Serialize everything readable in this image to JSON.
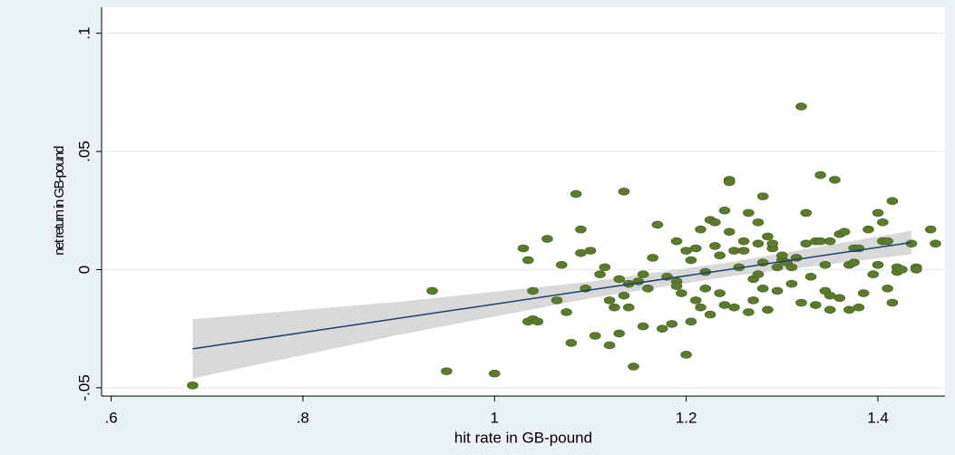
{
  "chart_data": {
    "type": "scatter",
    "y_label": "net return in GB-pound",
    "x_label": "hit rate in GB-pound",
    "xlim": [
      0.59,
      1.47
    ],
    "ylim": [
      -0.0535,
      0.111
    ],
    "xticks": [
      {
        "value": 0.6,
        "label": ".6"
      },
      {
        "value": 0.8,
        "label": ".8"
      },
      1,
      {
        "value": 1.2,
        "label": "1.2"
      },
      {
        "value": 1.4,
        "label": "1.4"
      }
    ],
    "yticks": [
      {
        "value": -0.05,
        "label": "-.05"
      },
      0,
      {
        "value": 0.05,
        "label": ".05"
      },
      {
        "value": 0.1,
        "label": ".1"
      }
    ],
    "grid": true,
    "color": "#5b7a2c",
    "x": [
      0.685,
      0.95,
      1.0,
      0.935,
      1.03,
      1.035,
      1.04,
      1.055,
      1.035,
      1.04,
      1.045,
      1.065,
      1.07,
      1.075,
      1.08,
      1.085,
      1.09,
      1.09,
      1.095,
      1.1,
      1.105,
      1.11,
      1.115,
      1.12,
      1.12,
      1.125,
      1.13,
      1.13,
      1.135,
      1.135,
      1.14,
      1.14,
      1.145,
      1.15,
      1.155,
      1.155,
      1.16,
      1.165,
      1.17,
      1.175,
      1.18,
      1.185,
      1.19,
      1.19,
      1.19,
      1.195,
      1.2,
      1.2,
      1.205,
      1.205,
      1.21,
      1.21,
      1.215,
      1.215,
      1.22,
      1.22,
      1.225,
      1.225,
      1.23,
      1.23,
      1.235,
      1.235,
      1.24,
      1.24,
      1.245,
      1.245,
      1.245,
      1.25,
      1.25,
      1.255,
      1.26,
      1.26,
      1.265,
      1.265,
      1.27,
      1.27,
      1.275,
      1.275,
      1.275,
      1.28,
      1.28,
      1.28,
      1.285,
      1.285,
      1.29,
      1.29,
      1.295,
      1.295,
      1.3,
      1.3,
      1.305,
      1.31,
      1.31,
      1.315,
      1.32,
      1.32,
      1.325,
      1.325,
      1.33,
      1.335,
      1.335,
      1.34,
      1.34,
      1.345,
      1.345,
      1.35,
      1.35,
      1.35,
      1.355,
      1.36,
      1.36,
      1.365,
      1.37,
      1.37,
      1.375,
      1.375,
      1.38,
      1.38,
      1.385,
      1.39,
      1.395,
      1.4,
      1.4,
      1.405,
      1.405,
      1.41,
      1.41,
      1.415,
      1.415,
      1.42,
      1.42,
      1.425,
      1.435,
      1.44,
      1.44,
      1.455,
      1.46
    ],
    "values": [
      -0.049,
      -0.043,
      -0.044,
      -0.009,
      0.009,
      0.004,
      -0.009,
      0.013,
      -0.022,
      -0.021,
      -0.022,
      -0.013,
      0.002,
      -0.018,
      -0.031,
      0.032,
      0.017,
      0.007,
      -0.008,
      0.008,
      -0.028,
      -0.002,
      0.001,
      -0.013,
      -0.032,
      -0.016,
      -0.004,
      -0.027,
      0.033,
      -0.011,
      -0.006,
      -0.016,
      -0.041,
      -0.005,
      -0.002,
      -0.024,
      -0.008,
      0.005,
      0.019,
      -0.025,
      -0.003,
      -0.023,
      0.012,
      -0.005,
      -0.007,
      -0.01,
      -0.036,
      0.008,
      -0.022,
      0.004,
      -0.013,
      0.009,
      0.017,
      -0.016,
      -0.001,
      -0.008,
      -0.019,
      0.021,
      0.02,
      0.01,
      -0.01,
      0.006,
      -0.015,
      0.025,
      0.038,
      0.037,
      0.016,
      0.008,
      -0.016,
      0.001,
      0.008,
      0.012,
      0.024,
      -0.018,
      -0.004,
      -0.013,
      0.011,
      -0.002,
      0.02,
      0.003,
      -0.008,
      0.031,
      0.014,
      -0.017,
      0.009,
      0.011,
      -0.009,
      0.001,
      0.004,
      0.006,
      0.003,
      0.001,
      -0.006,
      0.005,
      0.069,
      -0.014,
      0.011,
      0.024,
      -0.003,
      -0.015,
      0.012,
      0.012,
      0.04,
      0.002,
      -0.009,
      -0.011,
      -0.017,
      0.012,
      0.038,
      -0.012,
      0.015,
      0.016,
      -0.017,
      0.002,
      0.003,
      0.009,
      -0.016,
      0.009,
      -0.01,
      0.017,
      -0.002,
      0.024,
      0.002,
      0.02,
      0.012,
      -0.008,
      0.012,
      -0.014,
      0.029,
      0.001,
      -0.001,
      0.0,
      0.011,
      0.001,
      0.0,
      0.017,
      0.011
    ],
    "fit": {
      "color": "#1f3f6f",
      "x": [
        0.685,
        1.435
      ],
      "values": [
        -0.0335,
        0.0115
      ]
    },
    "ci": {
      "color": "#d9d9d9",
      "x": [
        0.685,
        0.9,
        1.1,
        1.25,
        1.435
      ],
      "upper": [
        -0.021,
        -0.0136,
        -0.0051,
        0.0034,
        0.0165
      ],
      "lower": [
        -0.046,
        -0.0276,
        -0.0121,
        -0.0026,
        0.0065
      ]
    }
  }
}
